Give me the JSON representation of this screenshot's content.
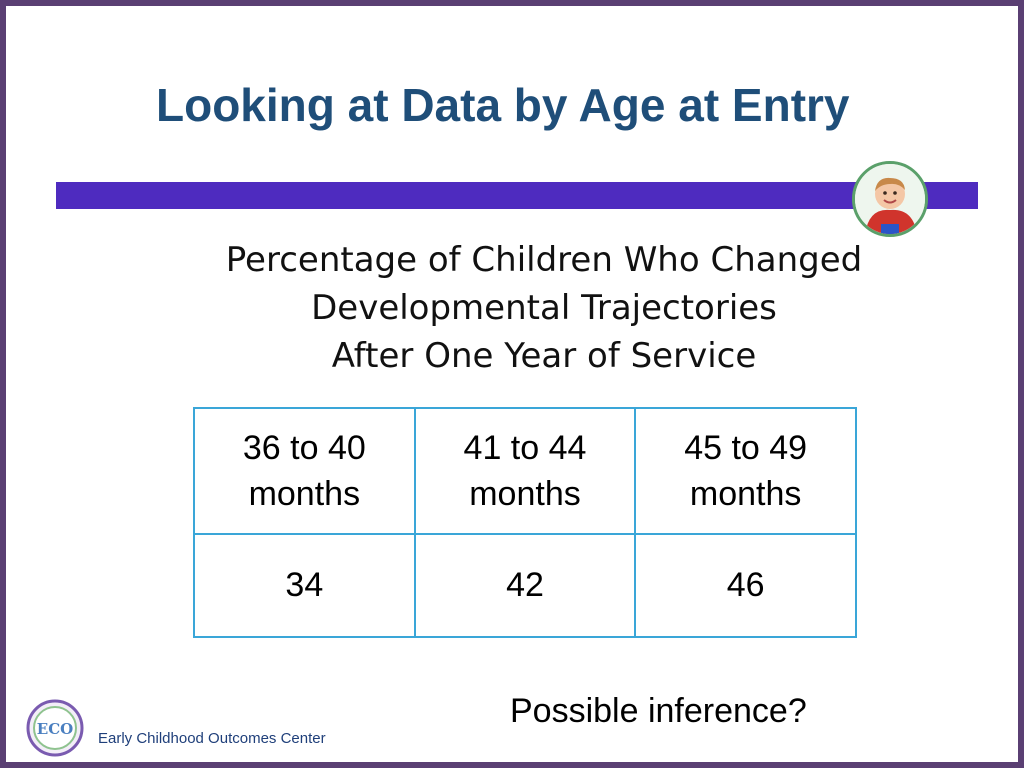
{
  "slide": {
    "title": "Looking at Data by Age at Entry",
    "subtitle_lines": [
      "Percentage of Children Who Changed",
      "Developmental Trajectories",
      "After One Year of Service"
    ],
    "table": {
      "headers": [
        [
          "36 to 40",
          "months"
        ],
        [
          "41 to 44",
          "months"
        ],
        [
          "45 to 49",
          "months"
        ]
      ],
      "values": [
        "34",
        "42",
        "46"
      ]
    },
    "inference_text": "Possible inference?",
    "footer_text": "Early Childhood Outcomes Center",
    "logo_text": "ECO"
  },
  "icons": {
    "avatar": "child-photo-icon",
    "logo": "eco-logo-icon"
  },
  "colors": {
    "title": "#1f4e79",
    "accent_bar": "#4e2bbf",
    "frame": "#5a3f73",
    "table_border": "#3aa6d8",
    "footer_text": "#1f3f7a"
  }
}
